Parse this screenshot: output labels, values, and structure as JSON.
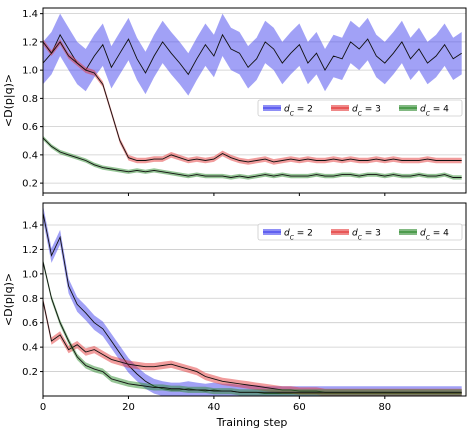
{
  "figure": {
    "xlabel": "Training step"
  },
  "colors": {
    "blue": "#4444ee",
    "red": "#e43a3a",
    "green": "#2e8b2e",
    "line": "#111111",
    "grid": "#cccccc"
  },
  "chart_data": [
    {
      "type": "line",
      "panel": "top",
      "title": "",
      "xlabel": "",
      "ylabel": "<D(p|q)>",
      "xlim": [
        0,
        99
      ],
      "ylim": [
        0.13,
        1.44
      ],
      "xticks": [
        0,
        20,
        40,
        60,
        80
      ],
      "yticks": [
        0.2,
        0.4,
        0.6,
        0.8,
        1.0,
        1.2,
        1.4
      ],
      "ytick_labels": [
        "0.2",
        "0.4",
        "0.6",
        "0.8",
        "1.0",
        "1.2",
        "1.4"
      ],
      "xtick_labels_shown": false,
      "grid": "horizontal",
      "legend": {
        "placement": "center-right",
        "columns": 3
      },
      "series": [
        {
          "name": "$d_C = 2$",
          "color": "blue",
          "x": [
            0,
            2,
            4,
            6,
            8,
            10,
            12,
            14,
            16,
            18,
            20,
            22,
            24,
            26,
            28,
            30,
            32,
            34,
            36,
            38,
            40,
            42,
            44,
            46,
            48,
            50,
            52,
            54,
            56,
            58,
            60,
            62,
            64,
            66,
            68,
            70,
            72,
            74,
            76,
            78,
            80,
            82,
            84,
            86,
            88,
            90,
            92,
            94,
            96,
            98
          ],
          "values": [
            1.05,
            1.12,
            1.25,
            1.15,
            1.05,
            1.0,
            1.1,
            1.18,
            1.02,
            1.12,
            1.22,
            1.08,
            0.98,
            1.1,
            1.2,
            1.12,
            1.05,
            0.97,
            1.08,
            1.18,
            1.1,
            1.25,
            1.15,
            1.12,
            1.02,
            1.08,
            1.2,
            1.15,
            1.05,
            1.12,
            1.18,
            1.05,
            1.12,
            1.0,
            1.1,
            1.08,
            1.2,
            1.15,
            1.22,
            1.1,
            1.05,
            1.12,
            1.2,
            1.08,
            1.15,
            1.05,
            1.1,
            1.18,
            1.08,
            1.12
          ],
          "spread": 0.15
        },
        {
          "name": "$d_C = 3$",
          "color": "red",
          "x": [
            0,
            2,
            4,
            6,
            8,
            10,
            12,
            14,
            16,
            18,
            20,
            22,
            24,
            26,
            28,
            30,
            32,
            34,
            36,
            38,
            40,
            42,
            44,
            46,
            48,
            50,
            52,
            54,
            56,
            58,
            60,
            62,
            64,
            66,
            68,
            70,
            72,
            74,
            76,
            78,
            80,
            82,
            84,
            86,
            88,
            90,
            92,
            94,
            96,
            98
          ],
          "values": [
            1.2,
            1.12,
            1.2,
            1.1,
            1.05,
            1.0,
            0.98,
            0.9,
            0.7,
            0.5,
            0.38,
            0.36,
            0.36,
            0.37,
            0.37,
            0.4,
            0.38,
            0.36,
            0.37,
            0.36,
            0.37,
            0.41,
            0.38,
            0.36,
            0.35,
            0.36,
            0.37,
            0.35,
            0.36,
            0.37,
            0.36,
            0.37,
            0.36,
            0.36,
            0.37,
            0.36,
            0.37,
            0.36,
            0.36,
            0.37,
            0.36,
            0.37,
            0.36,
            0.36,
            0.36,
            0.37,
            0.36,
            0.36,
            0.36,
            0.36
          ],
          "spread": 0.02
        },
        {
          "name": "$d_C = 4$",
          "color": "green",
          "x": [
            0,
            2,
            4,
            6,
            8,
            10,
            12,
            14,
            16,
            18,
            20,
            22,
            24,
            26,
            28,
            30,
            32,
            34,
            36,
            38,
            40,
            42,
            44,
            46,
            48,
            50,
            52,
            54,
            56,
            58,
            60,
            62,
            64,
            66,
            68,
            70,
            72,
            74,
            76,
            78,
            80,
            82,
            84,
            86,
            88,
            90,
            92,
            94,
            96,
            98
          ],
          "values": [
            0.52,
            0.46,
            0.42,
            0.4,
            0.38,
            0.36,
            0.33,
            0.31,
            0.3,
            0.29,
            0.28,
            0.29,
            0.28,
            0.29,
            0.28,
            0.27,
            0.26,
            0.25,
            0.26,
            0.25,
            0.25,
            0.25,
            0.24,
            0.25,
            0.24,
            0.25,
            0.26,
            0.25,
            0.26,
            0.25,
            0.25,
            0.25,
            0.26,
            0.25,
            0.25,
            0.26,
            0.26,
            0.25,
            0.26,
            0.26,
            0.25,
            0.26,
            0.25,
            0.25,
            0.26,
            0.25,
            0.25,
            0.26,
            0.24,
            0.24
          ],
          "spread": 0.015
        }
      ]
    },
    {
      "type": "line",
      "panel": "bottom",
      "title": "",
      "xlabel": "Training step",
      "ylabel": "<D(p|q)>",
      "xlim": [
        0,
        99
      ],
      "ylim": [
        0.0,
        1.58
      ],
      "xticks": [
        0,
        20,
        40,
        60,
        80
      ],
      "xtick_labels": [
        "0",
        "20",
        "40",
        "60",
        "80"
      ],
      "yticks": [
        0.2,
        0.4,
        0.6,
        0.8,
        1.0,
        1.2,
        1.4
      ],
      "ytick_labels": [
        "0.2",
        "0.4",
        "0.6",
        "0.8",
        "1.0",
        "1.2",
        "1.4"
      ],
      "grid": "horizontal",
      "legend": {
        "placement": "top-right",
        "columns": 3
      },
      "series": [
        {
          "name": "$d_C = 2$",
          "color": "blue",
          "x": [
            0,
            2,
            4,
            6,
            8,
            10,
            12,
            14,
            16,
            18,
            20,
            22,
            24,
            26,
            28,
            30,
            32,
            34,
            36,
            38,
            40,
            42,
            44,
            46,
            48,
            50,
            52,
            54,
            56,
            58,
            60,
            62,
            64,
            66,
            68,
            70,
            72,
            74,
            76,
            78,
            80,
            82,
            84,
            86,
            88,
            90,
            92,
            94,
            96,
            98
          ],
          "values": [
            1.5,
            1.15,
            1.3,
            0.9,
            0.75,
            0.68,
            0.6,
            0.55,
            0.45,
            0.35,
            0.25,
            0.18,
            0.12,
            0.08,
            0.06,
            0.05,
            0.05,
            0.06,
            0.05,
            0.04,
            0.05,
            0.04,
            0.04,
            0.03,
            0.03,
            0.03,
            0.02,
            0.02,
            0.02,
            0.02,
            0.02,
            0.02,
            0.02,
            0.02,
            0.02,
            0.02,
            0.02,
            0.02,
            0.02,
            0.02,
            0.02,
            0.02,
            0.02,
            0.02,
            0.02,
            0.02,
            0.02,
            0.02,
            0.02,
            0.02
          ],
          "spread": 0.06
        },
        {
          "name": "$d_C = 3$",
          "color": "red",
          "x": [
            0,
            2,
            4,
            6,
            8,
            10,
            12,
            14,
            16,
            18,
            20,
            22,
            24,
            26,
            28,
            30,
            32,
            34,
            36,
            38,
            40,
            42,
            44,
            46,
            48,
            50,
            52,
            54,
            56,
            58,
            60,
            62,
            64,
            66,
            68,
            70,
            72,
            74,
            76,
            78,
            80,
            82,
            84,
            86,
            88,
            90,
            92,
            94,
            96,
            98
          ],
          "values": [
            0.78,
            0.45,
            0.5,
            0.38,
            0.42,
            0.36,
            0.38,
            0.34,
            0.3,
            0.28,
            0.26,
            0.25,
            0.24,
            0.24,
            0.25,
            0.26,
            0.24,
            0.22,
            0.2,
            0.16,
            0.14,
            0.12,
            0.11,
            0.1,
            0.09,
            0.08,
            0.07,
            0.06,
            0.05,
            0.05,
            0.04,
            0.04,
            0.04,
            0.03,
            0.03,
            0.03,
            0.03,
            0.03,
            0.03,
            0.03,
            0.03,
            0.03,
            0.03,
            0.03,
            0.03,
            0.03,
            0.03,
            0.03,
            0.03,
            0.03
          ],
          "spread": 0.03
        },
        {
          "name": "$d_C = 4$",
          "color": "green",
          "x": [
            0,
            2,
            4,
            6,
            8,
            10,
            12,
            14,
            16,
            18,
            20,
            22,
            24,
            26,
            28,
            30,
            32,
            34,
            36,
            38,
            40,
            42,
            44,
            46,
            48,
            50,
            52,
            54,
            56,
            58,
            60,
            62,
            64,
            66,
            68,
            70,
            72,
            74,
            76,
            78,
            80,
            82,
            84,
            86,
            88,
            90,
            92,
            94,
            96,
            98
          ],
          "values": [
            1.1,
            0.8,
            0.6,
            0.45,
            0.32,
            0.25,
            0.22,
            0.2,
            0.14,
            0.12,
            0.1,
            0.09,
            0.08,
            0.07,
            0.07,
            0.06,
            0.06,
            0.05,
            0.05,
            0.05,
            0.04,
            0.04,
            0.04,
            0.03,
            0.03,
            0.03,
            0.03,
            0.03,
            0.03,
            0.03,
            0.03,
            0.03,
            0.03,
            0.03,
            0.03,
            0.03,
            0.03,
            0.03,
            0.03,
            0.03,
            0.03,
            0.03,
            0.03,
            0.03,
            0.03,
            0.03,
            0.03,
            0.03,
            0.03,
            0.03
          ],
          "spread": 0.025
        }
      ]
    }
  ]
}
